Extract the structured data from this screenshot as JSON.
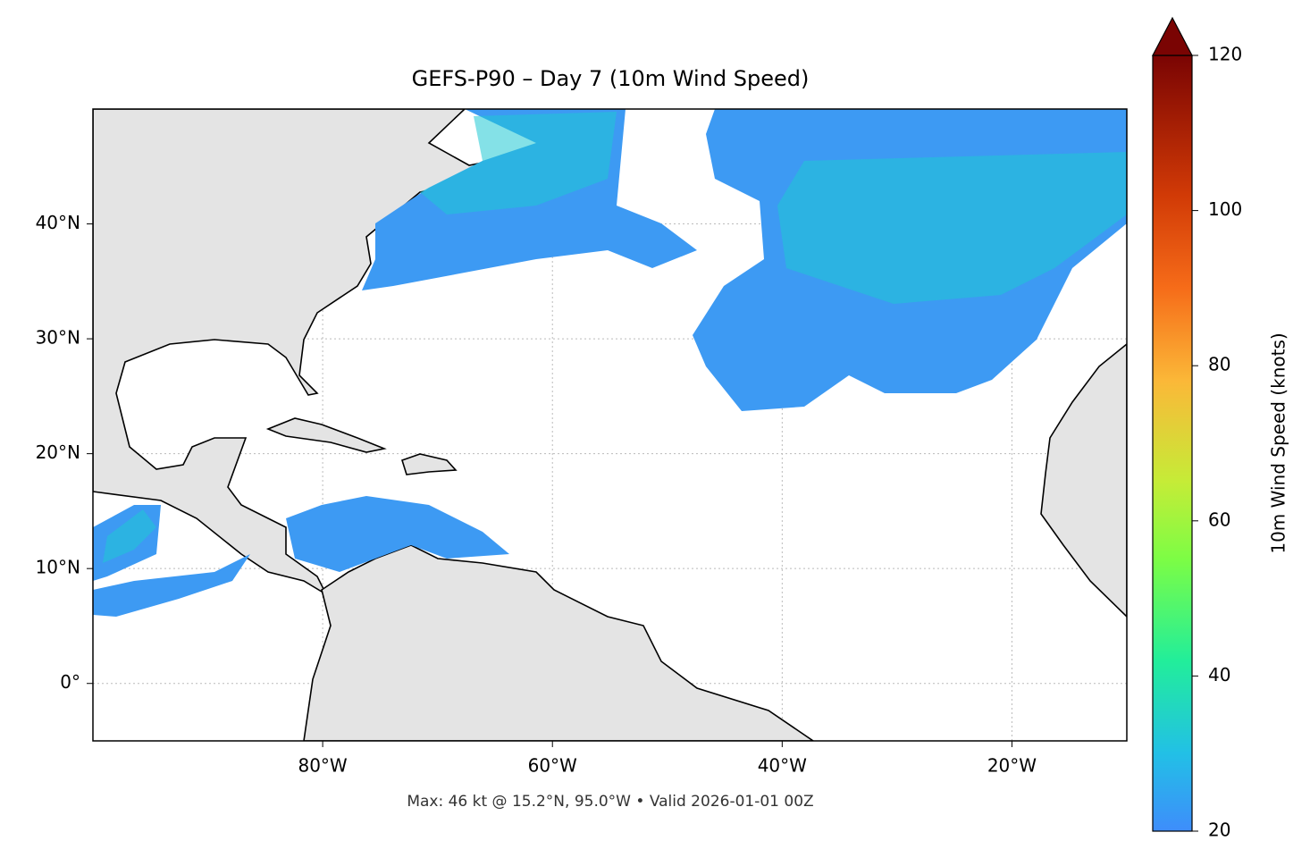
{
  "title": "GEFS-P90 – Day 7 (10m Wind Speed)",
  "footer": "Max: 46 kt @ 15.2°N, 95.0°W • Valid 2026-01-01 00Z",
  "map": {
    "xlim": [
      -100,
      -10
    ],
    "ylim": [
      -5,
      50
    ],
    "xticks": [
      {
        "value": -80,
        "label": "80°W"
      },
      {
        "value": -60,
        "label": "60°W"
      },
      {
        "value": -40,
        "label": "40°W"
      },
      {
        "value": -20,
        "label": "20°W"
      }
    ],
    "yticks": [
      {
        "value": 0,
        "label": "0°"
      },
      {
        "value": 10,
        "label": "10°N"
      },
      {
        "value": 20,
        "label": "20°N"
      },
      {
        "value": 30,
        "label": "30°N"
      },
      {
        "value": 40,
        "label": "40°N"
      }
    ],
    "grid": true
  },
  "colorbar": {
    "label": "10m Wind Speed (knots)",
    "lim": [
      20,
      120
    ],
    "ticks": [
      20,
      40,
      60,
      80,
      100,
      120
    ]
  }
}
